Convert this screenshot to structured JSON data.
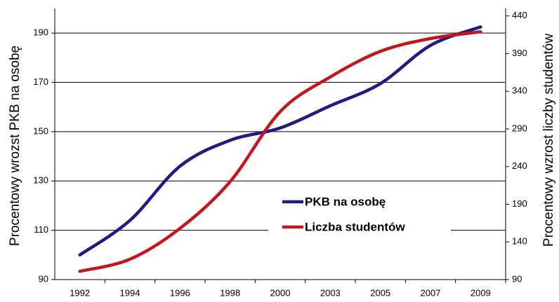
{
  "chart_data": {
    "type": "line",
    "y_label": "Procentowy wrozst PKB na osobę",
    "y2_label": "Procentowy wzrost liczby studentów",
    "categories": [
      "1992",
      "1994",
      "1996",
      "1998",
      "2000",
      "2003",
      "2005",
      "2007",
      "2009"
    ],
    "series": [
      {
        "name": "PKB na osobę",
        "color": "#1c1c84",
        "values": [
          100,
          114,
          136,
          146.5,
          151.5,
          160.5,
          169.5,
          185,
          192.5
        ]
      },
      {
        "name": "Liczba studentów",
        "color": "#c4161c",
        "axis": "y2",
        "values": [
          101,
          117,
          158,
          220,
          313,
          359,
          393,
          410,
          419
        ]
      }
    ],
    "ylim": [
      90,
      200
    ],
    "yticks": [
      90,
      110,
      130,
      150,
      170,
      190
    ],
    "y2lim": [
      90,
      450
    ],
    "y2ticks": [
      90,
      140,
      190,
      240,
      290,
      340,
      390,
      440
    ],
    "grid": true,
    "smooth": true
  }
}
